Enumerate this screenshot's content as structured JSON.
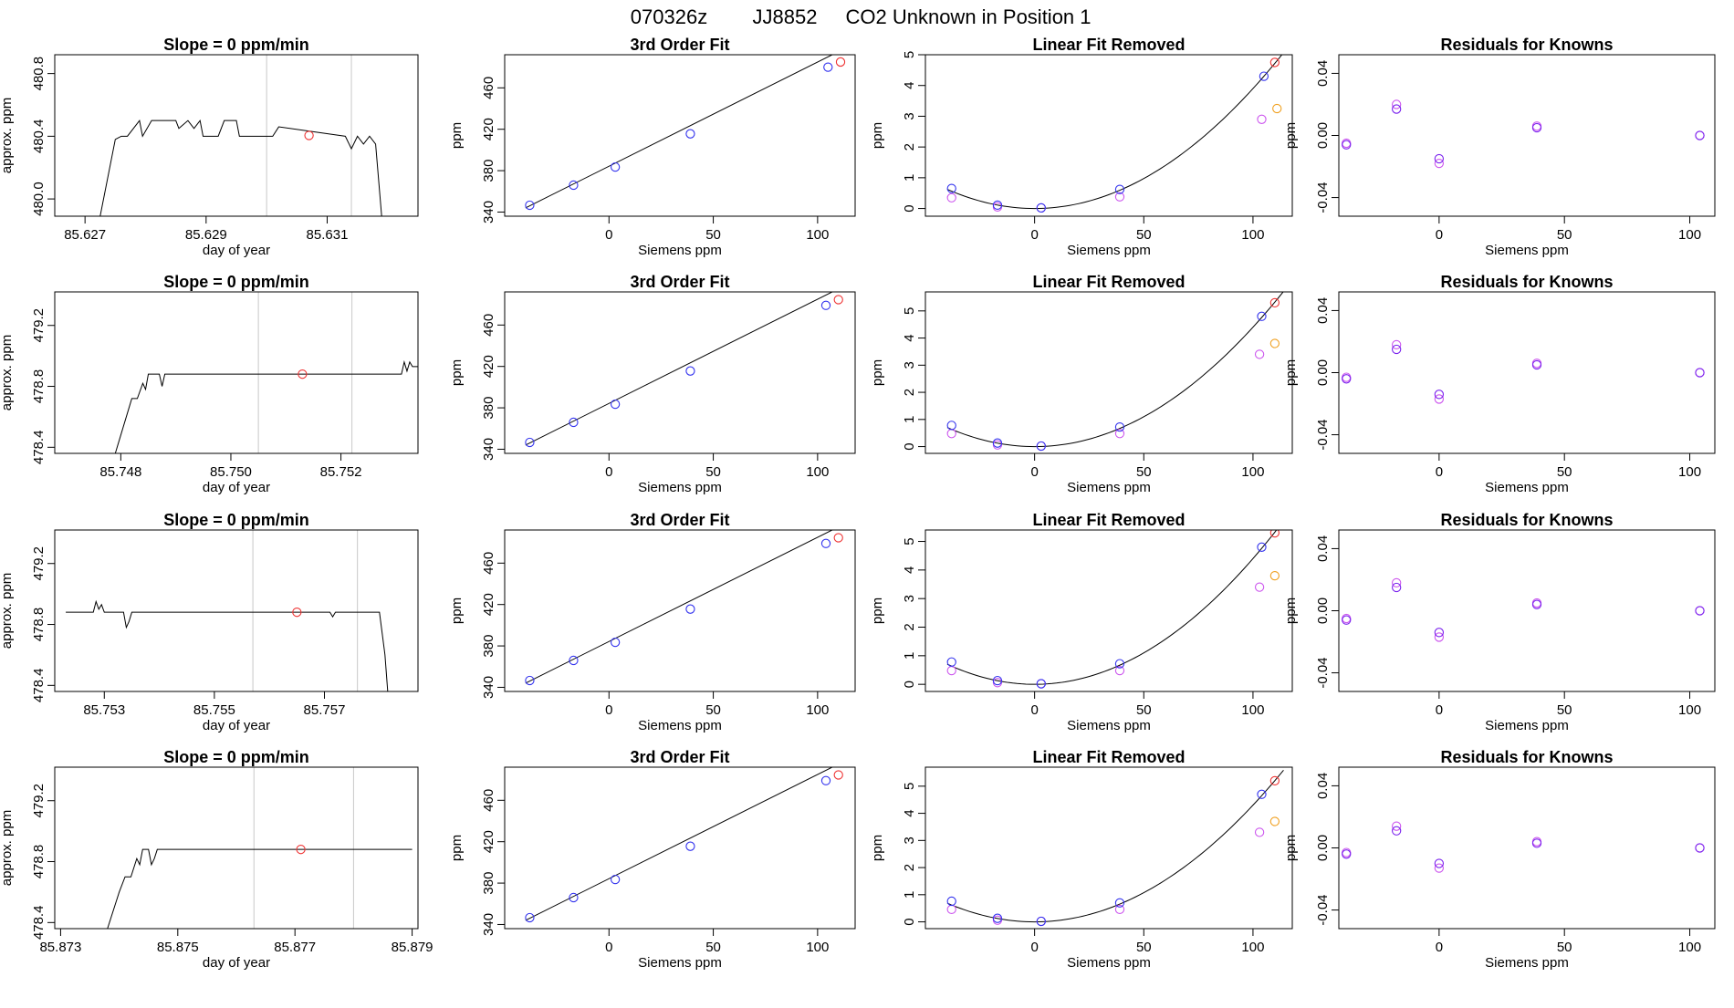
{
  "header": {
    "date_code": "070326z",
    "tank_id": "JJ8852",
    "description": "CO2 Unknown in Position  1"
  },
  "colors": {
    "blue": "#3333ee",
    "red": "#ee3333",
    "violet": "#cc55ee",
    "orange": "#f0a020",
    "purple": "#7a22ee",
    "line": "#000000",
    "vline": "#c8c8c8"
  },
  "chart_data": [
    {
      "row": 0,
      "panel": "trace",
      "type": "line",
      "title": "Slope =  0  ppm/min",
      "xlabel": "day of year",
      "ylabel": "approx. ppm",
      "xlim": [
        85.6265,
        85.6325
      ],
      "ylim": [
        479.89,
        480.92
      ],
      "xticks": [
        "85.627",
        "85.629",
        "85.631"
      ],
      "yticks": [
        "480.0",
        "480.4",
        "480.8"
      ],
      "vlines": [
        85.63,
        85.6314
      ],
      "point": [
        85.6307,
        480.405
      ],
      "x": [
        85.62725,
        85.6275,
        85.6276,
        85.6277,
        85.6279,
        85.62795,
        85.6281,
        85.6282,
        85.6285,
        85.62855,
        85.6287,
        85.6288,
        85.6289,
        85.62895,
        85.6292,
        85.6293,
        85.6295,
        85.62955,
        85.6301,
        85.6302,
        85.6313,
        85.6314,
        85.6315,
        85.6316,
        85.6317,
        85.6318,
        85.6319
      ],
      "y": [
        479.89,
        480.38,
        480.4,
        480.4,
        480.5,
        480.4,
        480.5,
        480.5,
        480.5,
        480.45,
        480.5,
        480.45,
        480.5,
        480.4,
        480.4,
        480.5,
        480.5,
        480.4,
        480.4,
        480.46,
        480.4,
        480.32,
        480.4,
        480.35,
        480.4,
        480.35,
        479.89
      ]
    },
    {
      "row": 0,
      "panel": "fit",
      "type": "scatter",
      "title": "3rd Order Fit",
      "xlabel": "Siemens ppm",
      "ylabel": "ppm",
      "xlim": [
        -50,
        118
      ],
      "ylim": [
        336,
        492
      ],
      "xticks": [
        0,
        50,
        100
      ],
      "yticks": [
        340,
        380,
        420,
        460
      ],
      "line": [
        [
          -40,
          344
        ],
        [
          112,
          497
        ]
      ],
      "knowns_x": [
        -38,
        -17,
        3,
        39,
        105
      ],
      "knowns_y": [
        346.6,
        366,
        383.5,
        415.6,
        480.0
      ],
      "unknown_x": [
        111
      ],
      "unknown_y": [
        485.0
      ]
    },
    {
      "row": 0,
      "panel": "linres",
      "type": "scatter",
      "title": "Linear Fit Removed",
      "xlabel": "Siemens ppm",
      "ylabel": "ppm",
      "xlim": [
        -50,
        118
      ],
      "ylim": [
        -0.25,
        5.0
      ],
      "xticks": [
        0,
        50,
        100
      ],
      "yticks": [
        0,
        1,
        2,
        3,
        4,
        5
      ],
      "curve_quad": 0.00039,
      "knowns_x": [
        -38,
        -17,
        3,
        39,
        105
      ],
      "knowns_y": [
        0.65,
        0.11,
        0.02,
        0.62,
        4.3
      ],
      "meas_x": [
        -38,
        -17,
        3,
        39,
        104
      ],
      "meas_y": [
        0.35,
        0.05,
        0.02,
        0.38,
        2.9
      ],
      "unknown_x": [
        110
      ],
      "unknown_y": [
        4.75
      ],
      "orange_x": [
        111
      ],
      "orange_y": [
        3.25
      ]
    },
    {
      "row": 0,
      "panel": "resid",
      "type": "scatter",
      "title": "Residuals for Knowns",
      "xlabel": "Siemens ppm",
      "ylabel": "ppm",
      "xlim": [
        -40,
        110
      ],
      "ylim": [
        -0.052,
        0.052
      ],
      "xticks": [
        0,
        50,
        100
      ],
      "yticks": [
        "-0.04",
        "0.00",
        "0.04"
      ],
      "series": [
        {
          "name": "violet",
          "x": [
            -37,
            -17,
            0,
            39,
            104
          ],
          "y": [
            -0.005,
            0.02,
            -0.018,
            0.006,
            0.0
          ]
        },
        {
          "name": "purple",
          "x": [
            -37,
            -17,
            0,
            39,
            104
          ],
          "y": [
            -0.006,
            0.017,
            -0.015,
            0.005,
            0.0
          ]
        }
      ]
    },
    {
      "row": 1,
      "panel": "trace",
      "type": "line",
      "title": "Slope =  0  ppm/min",
      "xlabel": "day of year",
      "ylabel": "approx. ppm",
      "xlim": [
        85.7468,
        85.7534
      ],
      "ylim": [
        478.36,
        479.42
      ],
      "xticks": [
        "85.748",
        "85.750",
        "85.752"
      ],
      "yticks": [
        "478.4",
        "478.8",
        "479.2"
      ],
      "vlines": [
        85.7505,
        85.7522
      ],
      "point": [
        85.7513,
        478.88
      ],
      "x": [
        85.7479,
        85.7481,
        85.7482,
        85.7483,
        85.7484,
        85.74845,
        85.7485,
        85.7486,
        85.7487,
        85.74875,
        85.7488,
        85.749,
        85.7531,
        85.75315,
        85.7532,
        85.75325,
        85.7533,
        85.7534
      ],
      "y": [
        478.36,
        478.6,
        478.72,
        478.72,
        478.82,
        478.78,
        478.88,
        478.88,
        478.88,
        478.8,
        478.88,
        478.88,
        478.88,
        478.96,
        478.9,
        478.96,
        478.93,
        478.93
      ]
    },
    {
      "row": 1,
      "panel": "fit",
      "type": "scatter",
      "title": "3rd Order Fit",
      "xlabel": "Siemens ppm",
      "ylabel": "ppm",
      "xlim": [
        -50,
        118
      ],
      "ylim": [
        336,
        492
      ],
      "xticks": [
        0,
        50,
        100
      ],
      "yticks": [
        340,
        380,
        420,
        460
      ],
      "line": [
        [
          -40,
          344
        ],
        [
          112,
          497
        ]
      ],
      "knowns_x": [
        -38,
        -17,
        3,
        39,
        104
      ],
      "knowns_y": [
        346.6,
        366,
        383.5,
        415.6,
        479.0
      ],
      "unknown_x": [
        110
      ],
      "unknown_y": [
        484.5
      ]
    },
    {
      "row": 1,
      "panel": "linres",
      "type": "scatter",
      "title": "Linear Fit Removed",
      "xlabel": "Siemens ppm",
      "ylabel": "ppm",
      "xlim": [
        -50,
        118
      ],
      "ylim": [
        -0.25,
        5.7
      ],
      "xticks": [
        0,
        50,
        100
      ],
      "yticks": [
        0,
        1,
        2,
        3,
        4,
        5
      ],
      "curve_quad": 0.00044,
      "knowns_x": [
        -38,
        -17,
        3,
        39,
        104
      ],
      "knowns_y": [
        0.78,
        0.13,
        0.02,
        0.72,
        4.8
      ],
      "meas_x": [
        -38,
        -17,
        3,
        39,
        103
      ],
      "meas_y": [
        0.48,
        0.06,
        0.02,
        0.48,
        3.4
      ],
      "unknown_x": [
        110
      ],
      "unknown_y": [
        5.3
      ],
      "orange_x": [
        110
      ],
      "orange_y": [
        3.8
      ]
    },
    {
      "row": 1,
      "panel": "resid",
      "type": "scatter",
      "title": "Residuals for Knowns",
      "xlabel": "Siemens ppm",
      "ylabel": "ppm",
      "xlim": [
        -40,
        110
      ],
      "ylim": [
        -0.052,
        0.052
      ],
      "xticks": [
        0,
        50,
        100
      ],
      "yticks": [
        "-0.04",
        "0.00",
        "0.04"
      ],
      "series": [
        {
          "name": "violet",
          "x": [
            -37,
            -17,
            0,
            39,
            104
          ],
          "y": [
            -0.003,
            0.018,
            -0.017,
            0.006,
            0.0
          ]
        },
        {
          "name": "purple",
          "x": [
            -37,
            -17,
            0,
            39,
            104
          ],
          "y": [
            -0.004,
            0.015,
            -0.014,
            0.005,
            0.0
          ]
        }
      ]
    },
    {
      "row": 2,
      "panel": "trace",
      "type": "line",
      "title": "Slope =  0  ppm/min",
      "xlabel": "day of year",
      "ylabel": "approx. ppm",
      "xlim": [
        85.7521,
        85.7587
      ],
      "ylim": [
        478.36,
        479.42
      ],
      "xticks": [
        "85.753",
        "85.755",
        "85.757"
      ],
      "yticks": [
        "478.4",
        "478.8",
        "479.2"
      ],
      "vlines": [
        85.7557,
        85.7576
      ],
      "point": [
        85.7565,
        478.88
      ],
      "x": [
        85.7523,
        85.7528,
        85.75285,
        85.7529,
        85.75295,
        85.753,
        85.7531,
        85.75335,
        85.7534,
        85.75345,
        85.7535,
        85.7571,
        85.75715,
        85.7572,
        85.758,
        85.7581,
        85.75815
      ],
      "y": [
        478.88,
        478.88,
        478.95,
        478.9,
        478.93,
        478.88,
        478.88,
        478.88,
        478.78,
        478.82,
        478.88,
        478.88,
        478.85,
        478.88,
        478.88,
        478.6,
        478.36
      ]
    },
    {
      "row": 2,
      "panel": "fit",
      "type": "scatter",
      "title": "3rd Order Fit",
      "xlabel": "Siemens ppm",
      "ylabel": "ppm",
      "xlim": [
        -50,
        118
      ],
      "ylim": [
        336,
        492
      ],
      "xticks": [
        0,
        50,
        100
      ],
      "yticks": [
        340,
        380,
        420,
        460
      ],
      "line": [
        [
          -40,
          344
        ],
        [
          112,
          497
        ]
      ],
      "knowns_x": [
        -38,
        -17,
        3,
        39,
        104
      ],
      "knowns_y": [
        346.6,
        366,
        383.5,
        415.6,
        479.0
      ],
      "unknown_x": [
        110
      ],
      "unknown_y": [
        484.5
      ]
    },
    {
      "row": 2,
      "panel": "linres",
      "type": "scatter",
      "title": "Linear Fit Removed",
      "xlabel": "Siemens ppm",
      "ylabel": "ppm",
      "xlim": [
        -50,
        118
      ],
      "ylim": [
        -0.25,
        5.4
      ],
      "xticks": [
        0,
        50,
        100
      ],
      "yticks": [
        0,
        1,
        2,
        3,
        4,
        5
      ],
      "curve_quad": 0.00044,
      "knowns_x": [
        -38,
        -17,
        3,
        39,
        104
      ],
      "knowns_y": [
        0.78,
        0.13,
        0.02,
        0.72,
        4.8
      ],
      "meas_x": [
        -38,
        -17,
        3,
        39,
        103
      ],
      "meas_y": [
        0.48,
        0.06,
        0.02,
        0.48,
        3.4
      ],
      "unknown_x": [
        110
      ],
      "unknown_y": [
        5.3
      ],
      "orange_x": [
        110
      ],
      "orange_y": [
        3.8
      ]
    },
    {
      "row": 2,
      "panel": "resid",
      "type": "scatter",
      "title": "Residuals for Knowns",
      "xlabel": "Siemens ppm",
      "ylabel": "ppm",
      "xlim": [
        -40,
        110
      ],
      "ylim": [
        -0.052,
        0.052
      ],
      "xticks": [
        0,
        50,
        100
      ],
      "yticks": [
        "-0.04",
        "0.00",
        "0.04"
      ],
      "series": [
        {
          "name": "violet",
          "x": [
            -37,
            -17,
            0,
            39,
            104
          ],
          "y": [
            -0.005,
            0.018,
            -0.017,
            0.005,
            0.0
          ]
        },
        {
          "name": "purple",
          "x": [
            -37,
            -17,
            0,
            39,
            104
          ],
          "y": [
            -0.006,
            0.015,
            -0.014,
            0.004,
            0.0
          ]
        }
      ]
    },
    {
      "row": 3,
      "panel": "trace",
      "type": "line",
      "title": "Slope =  0  ppm/min",
      "xlabel": "day of year",
      "ylabel": "approx. ppm",
      "xlim": [
        85.8729,
        85.8791
      ],
      "ylim": [
        478.36,
        479.42
      ],
      "xticks": [
        "85.873",
        "85.875",
        "85.877",
        "85.879"
      ],
      "yticks": [
        "478.4",
        "478.8",
        "479.2"
      ],
      "vlines": [
        85.8763,
        85.878
      ],
      "point": [
        85.8771,
        478.88
      ],
      "x": [
        85.8738,
        85.874,
        85.8741,
        85.8742,
        85.8743,
        85.87435,
        85.8744,
        85.8745,
        85.87455,
        85.8746,
        85.87465,
        85.8747,
        85.879
      ],
      "y": [
        478.36,
        478.6,
        478.7,
        478.7,
        478.82,
        478.78,
        478.88,
        478.88,
        478.78,
        478.82,
        478.88,
        478.88,
        478.88
      ]
    },
    {
      "row": 3,
      "panel": "fit",
      "type": "scatter",
      "title": "3rd Order Fit",
      "xlabel": "Siemens ppm",
      "ylabel": "ppm",
      "xlim": [
        -50,
        118
      ],
      "ylim": [
        336,
        492
      ],
      "xticks": [
        0,
        50,
        100
      ],
      "yticks": [
        340,
        380,
        420,
        460
      ],
      "line": [
        [
          -40,
          344
        ],
        [
          112,
          497
        ]
      ],
      "knowns_x": [
        -38,
        -17,
        3,
        39,
        104
      ],
      "knowns_y": [
        346.6,
        366,
        383.5,
        415.6,
        479.0
      ],
      "unknown_x": [
        110
      ],
      "unknown_y": [
        484.5
      ]
    },
    {
      "row": 3,
      "panel": "linres",
      "type": "scatter",
      "title": "Linear Fit Removed",
      "xlabel": "Siemens ppm",
      "ylabel": "ppm",
      "xlim": [
        -50,
        118
      ],
      "ylim": [
        -0.25,
        5.7
      ],
      "xticks": [
        0,
        50,
        100
      ],
      "yticks": [
        0,
        1,
        2,
        3,
        4,
        5
      ],
      "curve_quad": 0.00043,
      "knowns_x": [
        -38,
        -17,
        3,
        39,
        104
      ],
      "knowns_y": [
        0.76,
        0.13,
        0.02,
        0.7,
        4.7
      ],
      "meas_x": [
        -38,
        -17,
        3,
        39,
        103
      ],
      "meas_y": [
        0.46,
        0.06,
        0.02,
        0.46,
        3.3
      ],
      "unknown_x": [
        110
      ],
      "unknown_y": [
        5.2
      ],
      "orange_x": [
        110
      ],
      "orange_y": [
        3.7
      ]
    },
    {
      "row": 3,
      "panel": "resid",
      "type": "scatter",
      "title": "Residuals for Knowns",
      "xlabel": "Siemens ppm",
      "ylabel": "ppm",
      "xlim": [
        -40,
        110
      ],
      "ylim": [
        -0.052,
        0.052
      ],
      "xticks": [
        0,
        50,
        100
      ],
      "yticks": [
        "-0.04",
        "0.00",
        "0.04"
      ],
      "series": [
        {
          "name": "violet",
          "x": [
            -37,
            -17,
            0,
            39,
            104
          ],
          "y": [
            -0.003,
            0.014,
            -0.013,
            0.004,
            0.0
          ]
        },
        {
          "name": "purple",
          "x": [
            -37,
            -17,
            0,
            39,
            104
          ],
          "y": [
            -0.004,
            0.011,
            -0.01,
            0.003,
            0.0
          ]
        }
      ]
    }
  ]
}
